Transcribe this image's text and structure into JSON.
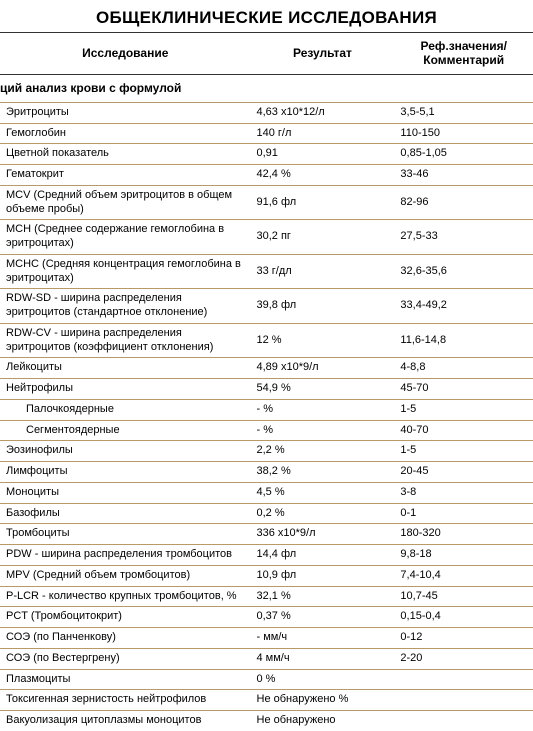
{
  "title": "ОБЩЕКЛИНИЧЕСКИЕ ИССЛЕДОВАНИЯ",
  "columns": {
    "name": "Исследование",
    "result": "Результат",
    "ref": "Реф.значения/ Комментарий"
  },
  "section": "ций анализ крови с формулой",
  "styling": {
    "border_color": "#b89968",
    "header_border_color": "#333333",
    "background_color": "#ffffff",
    "text_color": "#000000",
    "title_fontsize": 17,
    "header_fontsize": 12,
    "cell_fontsize": 11,
    "col_widths_pct": [
      47,
      27,
      26
    ]
  },
  "rows": [
    {
      "name": "Эритроциты",
      "result": "4,63 x10*12/л",
      "ref": "3,5-5,1",
      "indent": false
    },
    {
      "name": "Гемоглобин",
      "result": "140 г/л",
      "ref": "110-150",
      "indent": false
    },
    {
      "name": "Цветной показатель",
      "result": "0,91",
      "ref": "0,85-1,05",
      "indent": false
    },
    {
      "name": "Гематокрит",
      "result": "42,4 %",
      "ref": "33-46",
      "indent": false
    },
    {
      "name": "MCV (Средний объем эритроцитов в общем объеме пробы)",
      "result": "91,6 фл",
      "ref": "82-96",
      "indent": false
    },
    {
      "name": "MCH (Среднее содержание гемоглобина в эритроцитах)",
      "result": "30,2 пг",
      "ref": "27,5-33",
      "indent": false
    },
    {
      "name": "MCHC (Средняя концентрация гемоглобина в эритроцитах)",
      "result": "33 г/дл",
      "ref": "32,6-35,6",
      "indent": false
    },
    {
      "name": "RDW-SD - ширина распределения эритроцитов (стандартное отклонение)",
      "result": "39,8 фл",
      "ref": "33,4-49,2",
      "indent": false
    },
    {
      "name": "RDW-CV - ширина распределения эритроцитов (коэффициент отклонения)",
      "result": "12 %",
      "ref": "11,6-14,8",
      "indent": false
    },
    {
      "name": "Лейкоциты",
      "result": "4,89 x10*9/л",
      "ref": "4-8,8",
      "indent": false
    },
    {
      "name": "Нейтрофилы",
      "result": "54,9 %",
      "ref": "45-70",
      "indent": false
    },
    {
      "name": "Палочкоядерные",
      "result": "- %",
      "ref": "1-5",
      "indent": true
    },
    {
      "name": "Сегментоядерные",
      "result": "- %",
      "ref": "40-70",
      "indent": true
    },
    {
      "name": "Эозинофилы",
      "result": "2,2 %",
      "ref": "1-5",
      "indent": false
    },
    {
      "name": "Лимфоциты",
      "result": "38,2 %",
      "ref": "20-45",
      "indent": false
    },
    {
      "name": "Моноциты",
      "result": "4,5 %",
      "ref": "3-8",
      "indent": false
    },
    {
      "name": "Базофилы",
      "result": "0,2 %",
      "ref": "0-1",
      "indent": false
    },
    {
      "name": "Тромбоциты",
      "result": "336 x10*9/л",
      "ref": "180-320",
      "indent": false
    },
    {
      "name": "PDW - ширина распределения тромбоцитов",
      "result": "14,4 фл",
      "ref": "9,8-18",
      "indent": false
    },
    {
      "name": "MPV (Средний объем тромбоцитов)",
      "result": "10,9 фл",
      "ref": "7,4-10,4",
      "indent": false
    },
    {
      "name": "P-LCR - количество крупных тромбоцитов, %",
      "result": "32,1 %",
      "ref": "10,7-45",
      "indent": false
    },
    {
      "name": "PCT (Тромбоцитокрит)",
      "result": "0,37 %",
      "ref": "0,15-0,4",
      "indent": false
    },
    {
      "name": "СОЭ (по Панченкову)",
      "result": "- мм/ч",
      "ref": "0-12",
      "indent": false
    },
    {
      "name": "СОЭ (по Вестергрену)",
      "result": "4 мм/ч",
      "ref": "2-20",
      "indent": false
    },
    {
      "name": "Плазмоциты",
      "result": "0 %",
      "ref": "",
      "indent": false
    },
    {
      "name": "Токсигенная зернистость нейтрофилов",
      "result": "Не обнаружено %",
      "ref": "",
      "indent": false
    },
    {
      "name": "Вакуолизация цитоплазмы моноцитов",
      "result": "Не обнаружено",
      "ref": "",
      "indent": false
    }
  ]
}
